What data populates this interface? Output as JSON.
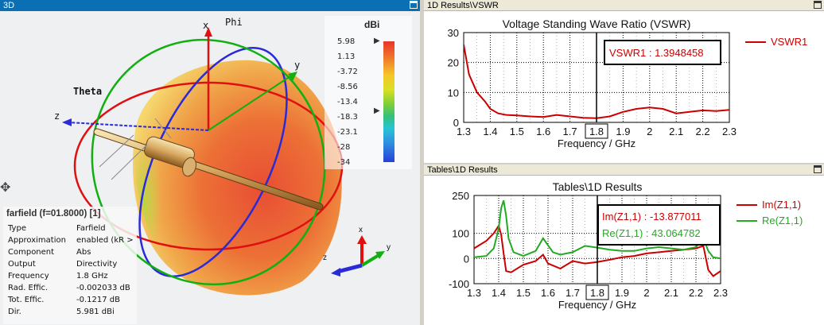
{
  "view3d": {
    "title": "3D",
    "axis_labels": {
      "x": "x",
      "y": "y",
      "z": "z",
      "phi": "Phi",
      "theta": "Theta"
    },
    "legend": {
      "unit": "dBi",
      "ticks": [
        "5.98",
        "1.13",
        "-3.72",
        "-8.56",
        "-13.4",
        "-18.3",
        "-23.1",
        "-28",
        "-34"
      ]
    },
    "info": {
      "header": "farfield (f=01.8000) [1]",
      "rows": [
        {
          "label": "Type",
          "value": "Farfield"
        },
        {
          "label": "Approximation",
          "value": "enabled (kR >"
        },
        {
          "label": "Component",
          "value": "Abs"
        },
        {
          "label": "Output",
          "value": "Directivity"
        },
        {
          "label": "Frequency",
          "value": "1.8 GHz"
        },
        {
          "label": "Rad. Effic.",
          "value": "-0.002033 dB"
        },
        {
          "label": "Tot. Effic.",
          "value": "-0.1217 dB"
        },
        {
          "label": "Dir.",
          "value": "5.981 dBi"
        }
      ]
    }
  },
  "vswr_panel": {
    "window_title": "1D Results\\VSWR",
    "chart_data": {
      "type": "line",
      "title": "Voltage Standing Wave Ratio (VSWR)",
      "xlabel": "Frequency / GHz",
      "ylabel": "",
      "xlim": [
        1.3,
        2.3
      ],
      "ylim": [
        0,
        30
      ],
      "xticks": [
        "1.3",
        "1.4",
        "1.5",
        "1.6",
        "1.7",
        "1.8",
        "1.9",
        "2",
        "2.1",
        "2.2",
        "2.3"
      ],
      "yticks": [
        "0",
        "10",
        "20",
        "30"
      ],
      "grid": true,
      "legend_position": "right",
      "marker_x": 1.8,
      "marker_label": "1.8",
      "annotations": [
        "VSWR1 : 1.3948458"
      ],
      "series": [
        {
          "name": "VSWR1",
          "color": "#cc0000",
          "x": [
            1.3,
            1.32,
            1.35,
            1.38,
            1.4,
            1.43,
            1.46,
            1.5,
            1.55,
            1.6,
            1.65,
            1.7,
            1.75,
            1.8,
            1.85,
            1.9,
            1.95,
            2.0,
            2.05,
            2.1,
            2.15,
            2.2,
            2.25,
            2.3
          ],
          "values": [
            26,
            16,
            10,
            7,
            4.5,
            3.0,
            2.5,
            2.3,
            2.0,
            1.8,
            2.5,
            2.0,
            1.5,
            1.4,
            2.0,
            3.5,
            4.5,
            5.0,
            4.5,
            3.0,
            3.5,
            4.0,
            3.8,
            4.2
          ]
        }
      ]
    }
  },
  "tables_panel": {
    "window_title": "Tables\\1D Results",
    "chart_data": {
      "type": "line",
      "title": "Tables\\1D Results",
      "xlabel": "Frequency / GHz",
      "ylabel": "",
      "xlim": [
        1.3,
        2.3
      ],
      "ylim": [
        -100,
        250
      ],
      "xticks": [
        "1.3",
        "1.4",
        "1.5",
        "1.6",
        "1.7",
        "1.8",
        "1.9",
        "2",
        "2.1",
        "2.2",
        "2.3"
      ],
      "yticks": [
        "-100",
        "0",
        "100",
        "250"
      ],
      "grid": true,
      "legend_position": "right",
      "marker_x": 1.8,
      "marker_label": "1.8",
      "annotations": [
        "Im(Z1,1) : -13.877011",
        "Re(Z1,1) : 43.064782"
      ],
      "series": [
        {
          "name": "Im(Z1,1)",
          "color": "#cc0000",
          "x": [
            1.3,
            1.35,
            1.38,
            1.4,
            1.41,
            1.42,
            1.43,
            1.45,
            1.5,
            1.55,
            1.58,
            1.6,
            1.65,
            1.7,
            1.75,
            1.8,
            1.85,
            1.9,
            1.95,
            2.0,
            2.05,
            2.1,
            2.15,
            2.2,
            2.23,
            2.25,
            2.27,
            2.3
          ],
          "values": [
            40,
            70,
            100,
            130,
            95,
            20,
            -50,
            -55,
            -25,
            -10,
            15,
            -20,
            -40,
            -10,
            -20,
            -14,
            -5,
            5,
            10,
            20,
            25,
            30,
            35,
            40,
            50,
            -45,
            -70,
            -50
          ]
        },
        {
          "name": "Re(Z1,1)",
          "color": "#22aa22",
          "x": [
            1.3,
            1.35,
            1.38,
            1.4,
            1.41,
            1.42,
            1.43,
            1.44,
            1.46,
            1.5,
            1.55,
            1.58,
            1.62,
            1.65,
            1.7,
            1.75,
            1.8,
            1.85,
            1.9,
            1.95,
            2.0,
            2.05,
            2.1,
            2.15,
            2.2,
            2.23,
            2.25,
            2.27,
            2.3
          ],
          "values": [
            5,
            10,
            40,
            120,
            200,
            230,
            170,
            80,
            25,
            10,
            30,
            80,
            25,
            15,
            25,
            50,
            43,
            35,
            30,
            30,
            40,
            45,
            40,
            35,
            45,
            80,
            30,
            5,
            0
          ]
        }
      ]
    }
  }
}
